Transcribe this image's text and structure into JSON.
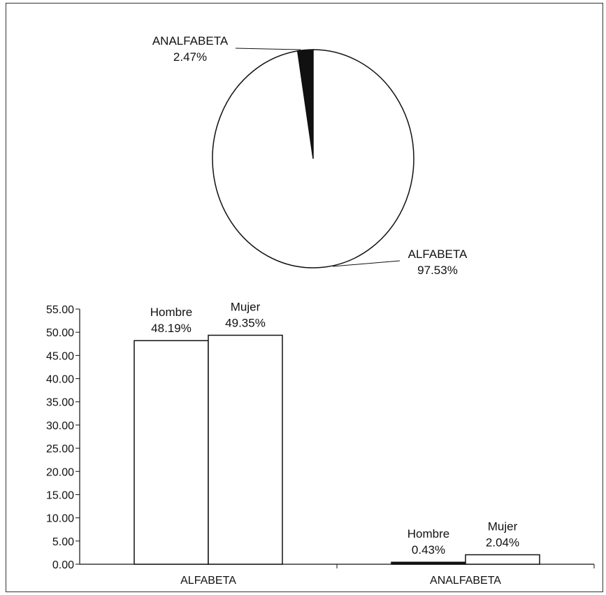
{
  "chart_data": [
    {
      "type": "pie",
      "slices": [
        {
          "label": "ANALFABETA",
          "value": 2.47,
          "value_label": "2.47%",
          "color": "#111111"
        },
        {
          "label": "ALFABETA",
          "value": 97.53,
          "value_label": "97.53%",
          "color": "#ffffff"
        }
      ]
    },
    {
      "type": "bar",
      "categories": [
        "ALFABETA",
        "ANALFABETA"
      ],
      "series": [
        {
          "name": "Hombre",
          "values": [
            48.19,
            0.43
          ],
          "value_labels": [
            "48.19%",
            "0.43%"
          ]
        },
        {
          "name": "Mujer",
          "values": [
            49.35,
            2.04
          ],
          "value_labels": [
            "49.35%",
            "2.04%"
          ]
        }
      ],
      "ylim": [
        0,
        55
      ],
      "yticks": [
        "0.00",
        "5.00",
        "10.00",
        "15.00",
        "20.00",
        "25.00",
        "30.00",
        "35.00",
        "40.00",
        "45.00",
        "50.00",
        "55.00"
      ],
      "grid": false
    }
  ]
}
